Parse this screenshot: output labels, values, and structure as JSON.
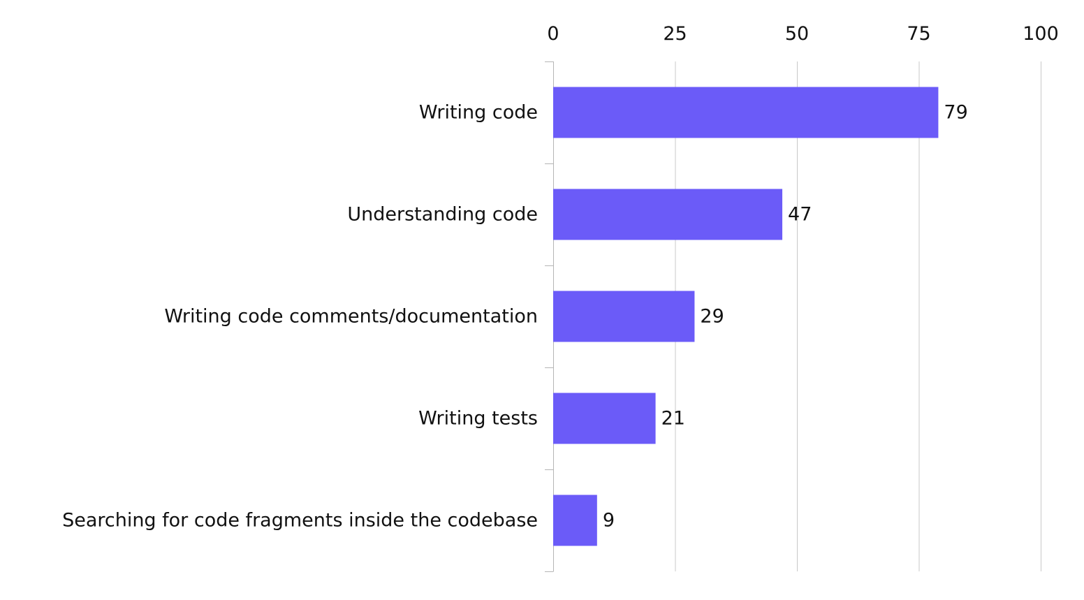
{
  "chart_data": {
    "type": "bar",
    "orientation": "horizontal",
    "categories": [
      "Writing code",
      "Understanding code",
      "Writing code comments/documentation",
      "Writing tests",
      "Searching for code fragments inside the codebase"
    ],
    "values": [
      79,
      47,
      29,
      21,
      9
    ],
    "data_labels": [
      "79",
      "47",
      "29",
      "21",
      "9"
    ],
    "xlim": [
      0,
      100
    ],
    "x_ticks": [
      0,
      25,
      50,
      75,
      100
    ],
    "x_tick_labels": [
      "0",
      "25",
      "50",
      "75",
      "100"
    ],
    "x_axis_position": "top",
    "grid": true,
    "legend": "none",
    "bar_color": "#6b5bf8",
    "title": "",
    "xlabel": "",
    "ylabel": ""
  }
}
